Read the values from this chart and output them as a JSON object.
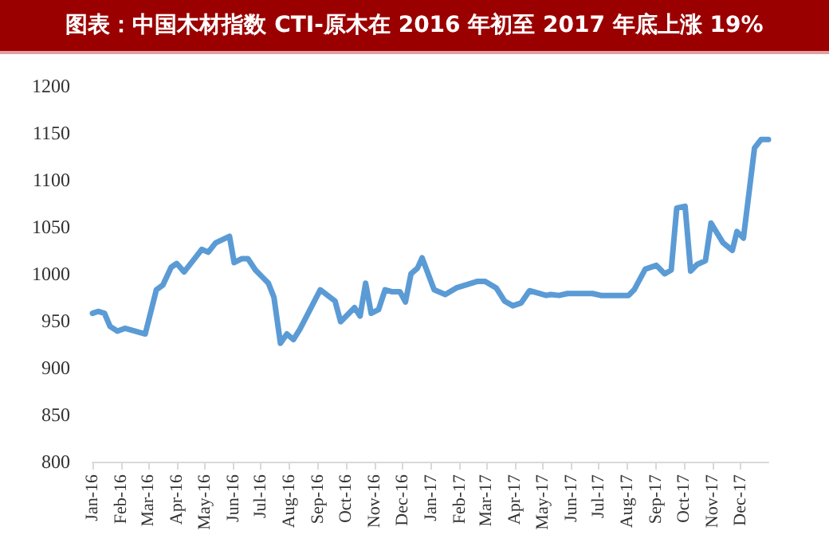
{
  "chart_data": {
    "type": "line",
    "title": "图表：中国木材指数 CTI-原木在 2016 年初至 2017 年底上涨 19%",
    "x": [
      "2016-01-01",
      "2016-01-07",
      "2016-01-14",
      "2016-01-20",
      "2016-01-28",
      "2016-02-05",
      "2016-02-27",
      "2016-03-10",
      "2016-03-17",
      "2016-03-26",
      "2016-04-01",
      "2016-04-09",
      "2016-04-21",
      "2016-04-28",
      "2016-05-05",
      "2016-05-13",
      "2016-05-28",
      "2016-06-02",
      "2016-06-10",
      "2016-06-17",
      "2016-06-25",
      "2016-07-04",
      "2016-07-09",
      "2016-07-15",
      "2016-07-22",
      "2016-07-29",
      "2016-08-05",
      "2016-08-12",
      "2016-09-03",
      "2016-09-19",
      "2016-09-25",
      "2016-10-10",
      "2016-10-16",
      "2016-10-22",
      "2016-10-28",
      "2016-11-05",
      "2016-11-12",
      "2016-11-19",
      "2016-11-28",
      "2016-12-04",
      "2016-12-10",
      "2016-12-17",
      "2016-12-22",
      "2017-01-04",
      "2017-01-16",
      "2017-01-28",
      "2017-02-20",
      "2017-02-28",
      "2017-03-12",
      "2017-03-21",
      "2017-03-30",
      "2017-04-08",
      "2017-04-17",
      "2017-05-05",
      "2017-05-10",
      "2017-05-19",
      "2017-05-28",
      "2017-06-24",
      "2017-07-03",
      "2017-08-02",
      "2017-08-08",
      "2017-08-20",
      "2017-09-01",
      "2017-09-10",
      "2017-09-17",
      "2017-09-23",
      "2017-10-02",
      "2017-10-08",
      "2017-10-15",
      "2017-10-24",
      "2017-10-30",
      "2017-11-12",
      "2017-11-22",
      "2017-11-27",
      "2017-12-04",
      "2017-12-16",
      "2017-12-23",
      "2017-12-31"
    ],
    "values": [
      958,
      960,
      958,
      944,
      939,
      942,
      936,
      983,
      988,
      1007,
      1011,
      1002,
      1017,
      1026,
      1023,
      1033,
      1040,
      1012,
      1016,
      1016,
      1004,
      995,
      990,
      975,
      926,
      936,
      930,
      941,
      983,
      971,
      949,
      964,
      955,
      990,
      958,
      962,
      983,
      981,
      981,
      970,
      1000,
      1006,
      1017,
      983,
      978,
      985,
      992,
      992,
      985,
      971,
      966,
      969,
      982,
      977,
      978,
      977,
      979,
      979,
      977,
      977,
      983,
      1005,
      1009,
      1000,
      1004,
      1070,
      1072,
      1003,
      1010,
      1014,
      1054,
      1033,
      1025,
      1045,
      1038,
      1134,
      1143,
      1143
    ],
    "color": "#5b9bd5",
    "xlim": [
      "2016-01-01",
      "2017-12-31"
    ],
    "xticks": [
      {
        "value": "2016-01-01",
        "label": "Jan-16"
      },
      {
        "value": "2016-02-01",
        "label": "Feb-16"
      },
      {
        "value": "2016-03-01",
        "label": "Mar-16"
      },
      {
        "value": "2016-04-01",
        "label": "Apr-16"
      },
      {
        "value": "2016-05-01",
        "label": "May-16"
      },
      {
        "value": "2016-06-01",
        "label": "Jun-16"
      },
      {
        "value": "2016-07-01",
        "label": "Jul-16"
      },
      {
        "value": "2016-08-01",
        "label": "Aug-16"
      },
      {
        "value": "2016-09-01",
        "label": "Sep-16"
      },
      {
        "value": "2016-10-01",
        "label": "Oct-16"
      },
      {
        "value": "2016-11-01",
        "label": "Nov-16"
      },
      {
        "value": "2016-12-01",
        "label": "Dec-16"
      },
      {
        "value": "2017-01-01",
        "label": "Jan-17"
      },
      {
        "value": "2017-02-01",
        "label": "Feb-17"
      },
      {
        "value": "2017-03-01",
        "label": "Mar-17"
      },
      {
        "value": "2017-04-01",
        "label": "Apr-17"
      },
      {
        "value": "2017-05-01",
        "label": "May-17"
      },
      {
        "value": "2017-06-01",
        "label": "Jun-17"
      },
      {
        "value": "2017-07-01",
        "label": "Jul-17"
      },
      {
        "value": "2017-08-01",
        "label": "Aug-17"
      },
      {
        "value": "2017-09-01",
        "label": "Sep-17"
      },
      {
        "value": "2017-10-01",
        "label": "Oct-17"
      },
      {
        "value": "2017-11-01",
        "label": "Nov-17"
      },
      {
        "value": "2017-12-01",
        "label": "Dec-17"
      }
    ],
    "ylim": [
      800,
      1200
    ],
    "yticks": [
      800,
      850,
      900,
      950,
      1000,
      1050,
      1100,
      1150,
      1200
    ],
    "grid": false,
    "marker": "none",
    "line_style": "solid"
  }
}
